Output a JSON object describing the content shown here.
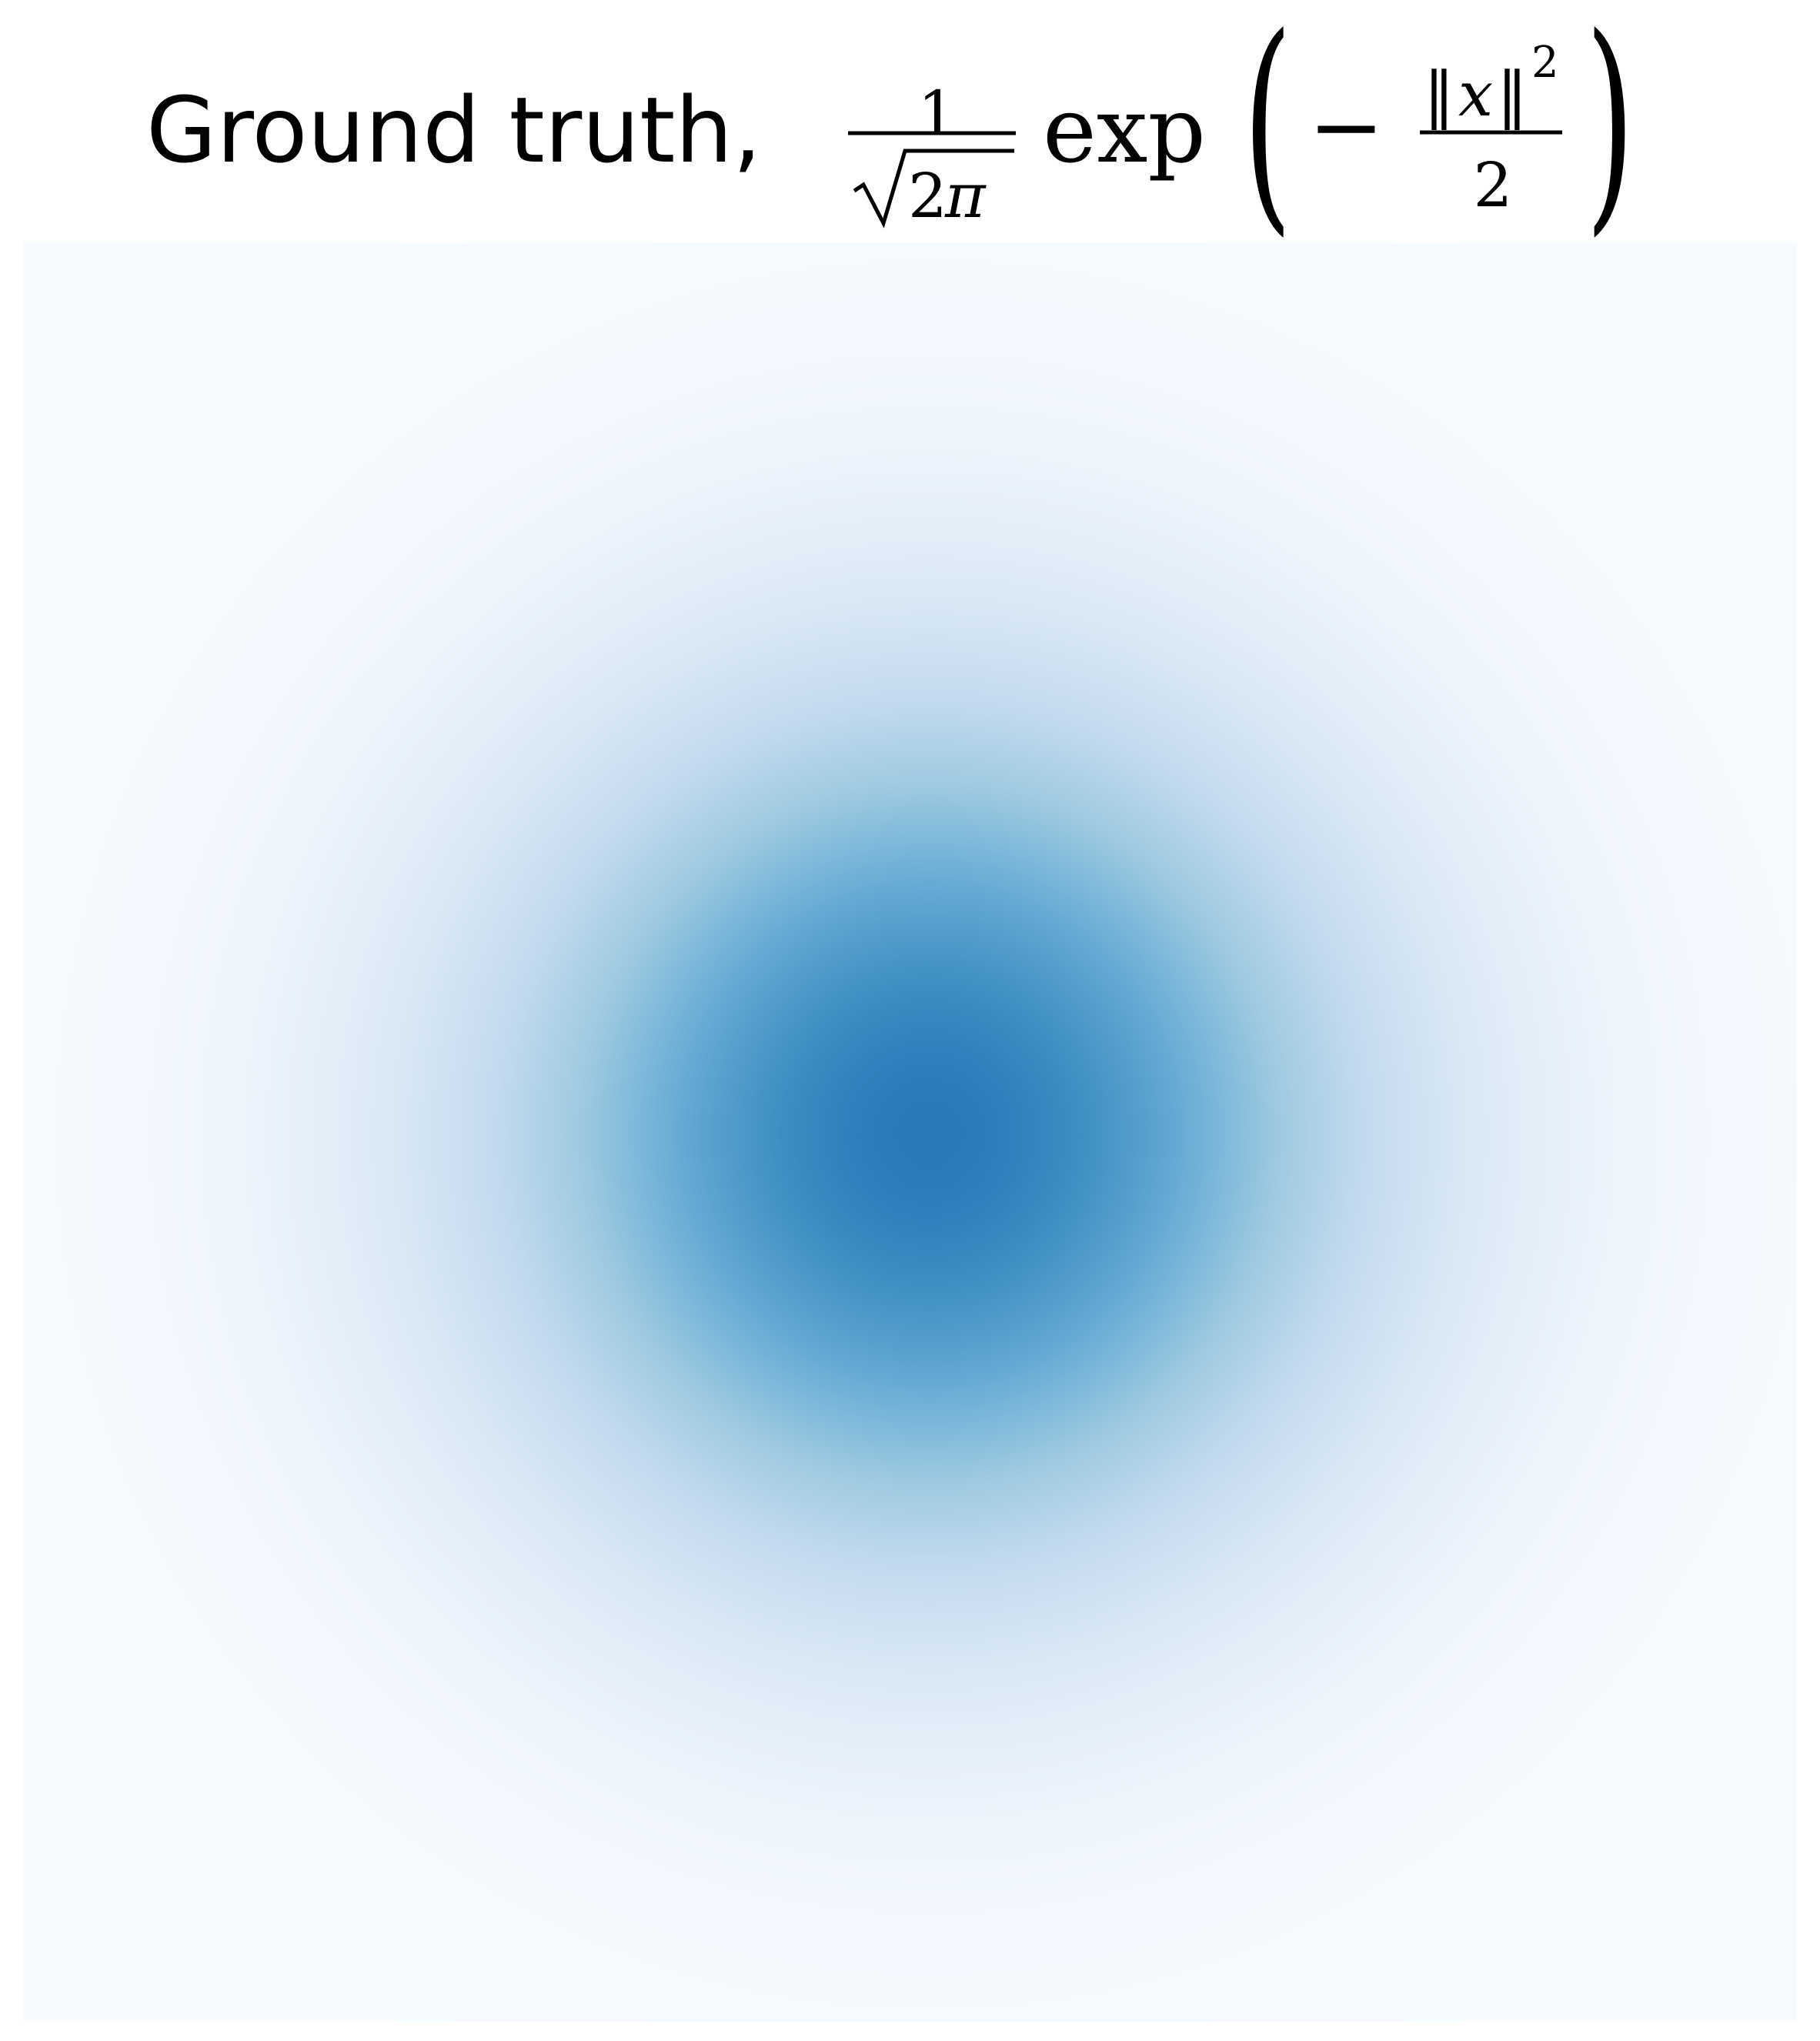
{
  "chart_data": {
    "type": "heatmap",
    "title": {
      "prefix": "Ground truth,",
      "frac_numerator": "1",
      "sqrt_argument": "2",
      "pi": "π",
      "exp": "exp",
      "minus": "−",
      "norm_bars": "‖",
      "variable": "x",
      "exponent": "2",
      "inner_denominator": "2",
      "open_paren": "(",
      "close_paren": ")"
    },
    "function": "(1/sqrt(2*pi)) * exp(-||x||^2 / 2)",
    "center": [
      0,
      0
    ],
    "sigma": 1,
    "peak_value": 0.3989,
    "domain_approx": {
      "x": [
        -3.2,
        3.2
      ],
      "y": [
        -3.2,
        3.2
      ]
    },
    "colormap": "Blues",
    "colormap_stops": [
      "#f7fbff",
      "#deebf7",
      "#c6dbef",
      "#9ecae1",
      "#6baed6",
      "#4292c6",
      "#2171b5",
      "#08519c",
      "#08306b"
    ],
    "colormap_max_fraction": 0.72,
    "grid": false,
    "axes": false,
    "legend": "none"
  }
}
